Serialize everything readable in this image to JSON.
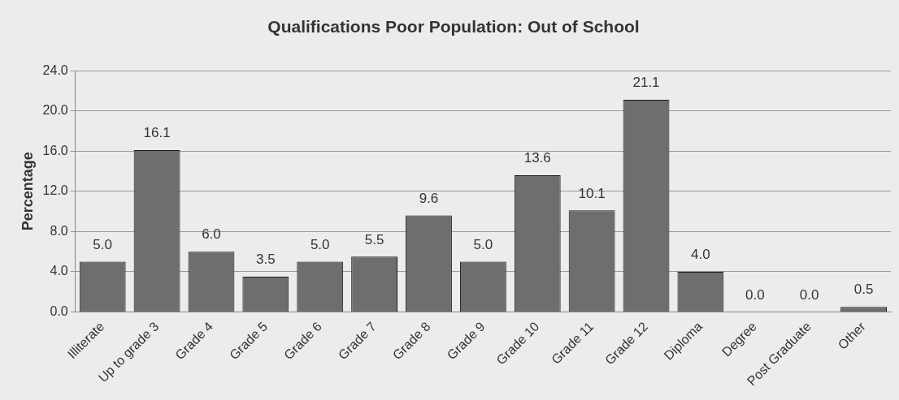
{
  "chart_data": {
    "type": "bar",
    "title": "Qualifications Poor Population: Out of School",
    "ylabel": "Percentage",
    "categories": [
      "Illiterate",
      "Up to grade 3",
      "Grade 4",
      "Grade 5",
      "Grade 6",
      "Grade 7",
      "Grade 8",
      "Grade 9",
      "Grade 10",
      "Grade 11",
      "Grade 12",
      "Diploma",
      "Degree",
      "Post Graduate",
      "Other"
    ],
    "values": [
      5.0,
      16.1,
      6.0,
      3.5,
      5.0,
      5.5,
      9.6,
      5.0,
      13.6,
      10.1,
      21.1,
      4.0,
      0.0,
      0.0,
      0.5
    ],
    "value_labels": [
      "5.0",
      "16.1",
      "6.0",
      "3.5",
      "5.0",
      "5.5",
      "9.6",
      "5.0",
      "13.6",
      "10.1",
      "21.1",
      "4.0",
      "0.0",
      "0.0",
      "0.5"
    ],
    "color": "#6e6e6e",
    "ylim": [
      0,
      24
    ],
    "yticks": [
      {
        "value": 0,
        "label": "0.0"
      },
      {
        "value": 4,
        "label": "4.0"
      },
      {
        "value": 8,
        "label": "8.0"
      },
      {
        "value": 12,
        "label": "12.0"
      },
      {
        "value": 16,
        "label": "16.0"
      },
      {
        "value": 20,
        "label": "20.0"
      },
      {
        "value": 24,
        "label": "24.0"
      }
    ],
    "grid": "y",
    "legend": false
  }
}
